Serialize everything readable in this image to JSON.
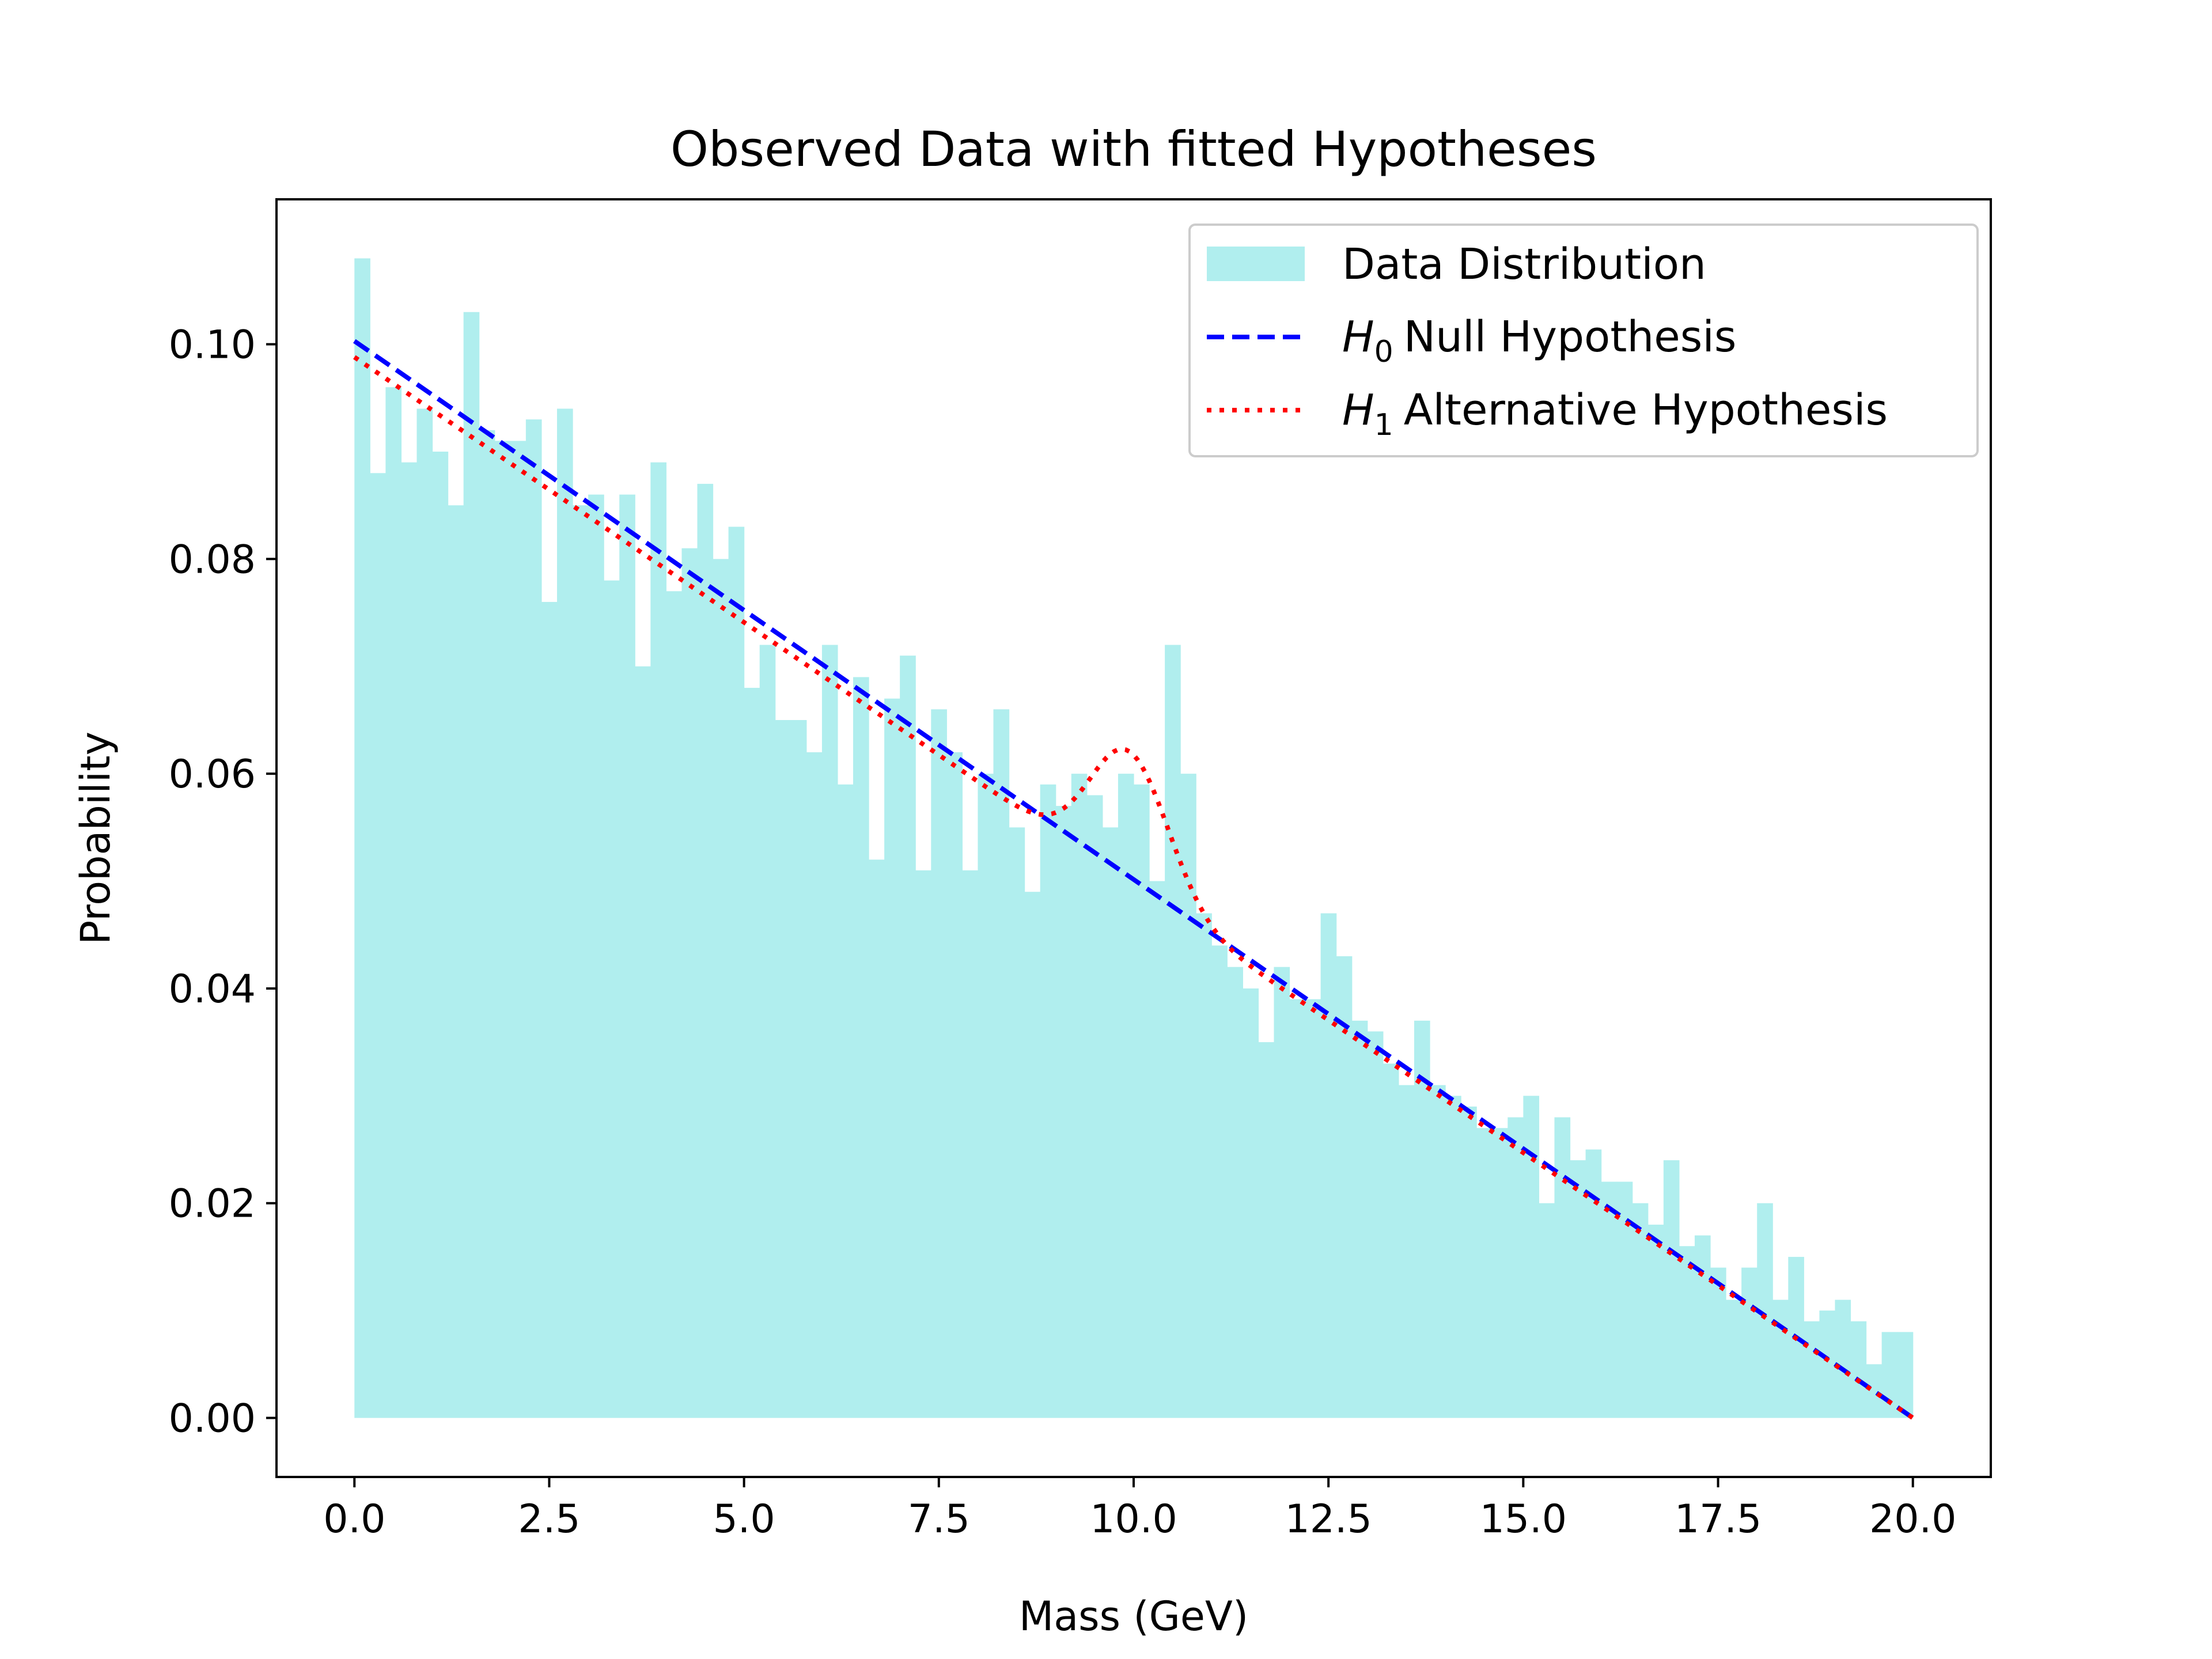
{
  "chart_data": {
    "type": "bar",
    "title": "Observed Data with fitted Hypotheses",
    "xlabel": "Mass (GeV)",
    "ylabel": "Probability",
    "xlim": [
      -1,
      21
    ],
    "ylim": [
      -0.0055,
      0.1135
    ],
    "xticks": [
      0,
      2.5,
      5,
      7.5,
      10,
      12.5,
      15,
      17.5,
      20
    ],
    "xtick_labels": [
      "0.0",
      "2.5",
      "5.0",
      "7.5",
      "10.0",
      "12.5",
      "15.0",
      "17.5",
      "20.0"
    ],
    "yticks": [
      0,
      0.02,
      0.04,
      0.06,
      0.08,
      0.1
    ],
    "ytick_labels": [
      "0.00",
      "0.02",
      "0.04",
      "0.06",
      "0.08",
      "0.10"
    ],
    "grid": false,
    "legend_position": "top-right",
    "histogram": {
      "name": "Data Distribution",
      "color": "#b0eeee",
      "bin_start": 0,
      "bin_width": 0.2,
      "values": [
        0.108,
        0.088,
        0.096,
        0.089,
        0.094,
        0.09,
        0.085,
        0.103,
        0.092,
        0.091,
        0.091,
        0.093,
        0.076,
        0.094,
        0.085,
        0.086,
        0.078,
        0.086,
        0.07,
        0.089,
        0.077,
        0.081,
        0.087,
        0.08,
        0.083,
        0.068,
        0.072,
        0.065,
        0.065,
        0.062,
        0.072,
        0.059,
        0.069,
        0.052,
        0.067,
        0.071,
        0.051,
        0.066,
        0.062,
        0.051,
        0.06,
        0.066,
        0.055,
        0.049,
        0.059,
        0.057,
        0.06,
        0.058,
        0.055,
        0.06,
        0.059,
        0.05,
        0.072,
        0.06,
        0.047,
        0.044,
        0.042,
        0.04,
        0.035,
        0.042,
        0.039,
        0.039,
        0.047,
        0.043,
        0.037,
        0.036,
        0.033,
        0.031,
        0.037,
        0.031,
        0.03,
        0.029,
        0.027,
        0.027,
        0.028,
        0.03,
        0.02,
        0.028,
        0.024,
        0.025,
        0.022,
        0.022,
        0.02,
        0.018,
        0.024,
        0.016,
        0.017,
        0.014,
        0.011,
        0.014,
        0.02,
        0.011,
        0.015,
        0.009,
        0.01,
        0.011,
        0.009,
        0.005,
        0.008,
        0.008
      ]
    },
    "series": [
      {
        "name": "H0 Null Hypothesis",
        "label_symbol": "H",
        "label_subscript": "0",
        "label_text": "Null Hypothesis",
        "style": "dashed",
        "color": "#0000ff",
        "x": [
          0,
          20
        ],
        "y": [
          0.1003,
          0.0
        ]
      },
      {
        "name": "H1 Alternative Hypothesis",
        "label_symbol": "H",
        "label_subscript": "1",
        "label_text": "Alternative Hypothesis",
        "style": "dotted",
        "color": "#ff0000",
        "linear_start": [
          0,
          0.0988
        ],
        "linear_end": [
          20,
          0.0
        ],
        "gaussian_peak": {
          "mean": 9.95,
          "sigma": 0.5,
          "amplitude": 0.0124
        }
      }
    ]
  }
}
